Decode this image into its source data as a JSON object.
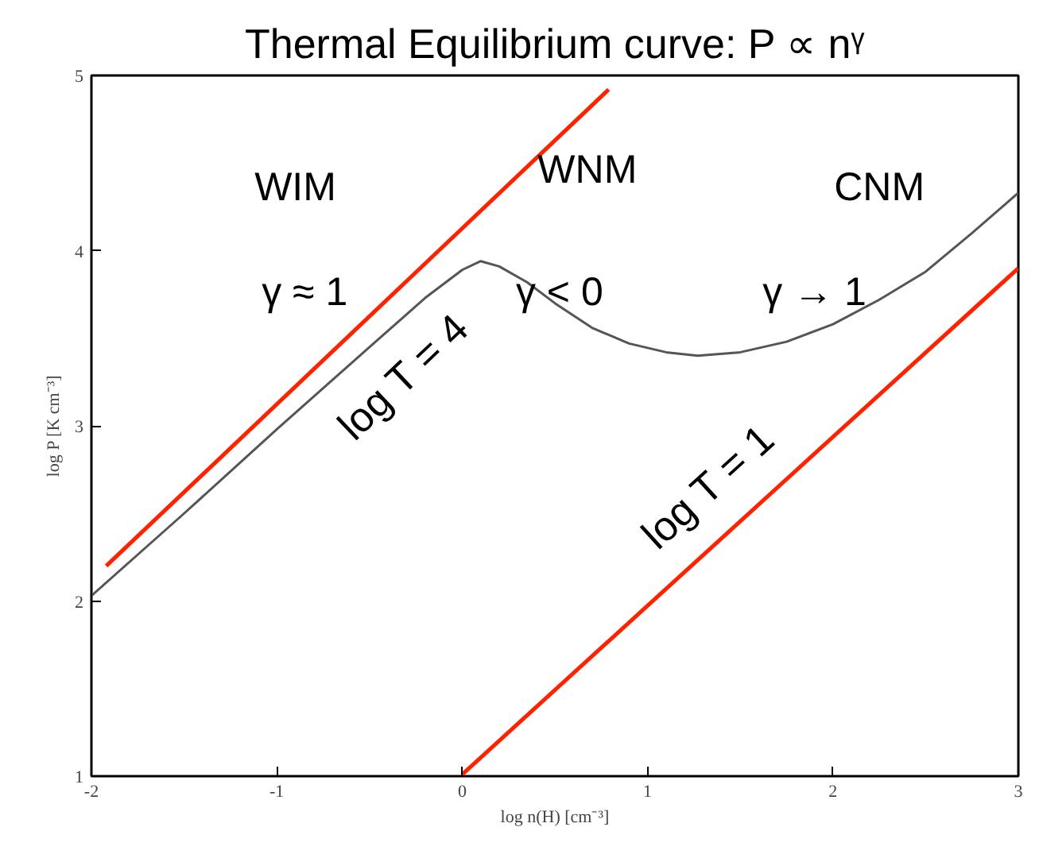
{
  "chart_data": {
    "type": "line",
    "title": "Thermal Equilibrium curve: P ∝ nᵞ",
    "xlabel": "log n(H) [cm⁻³]",
    "ylabel": "log P [K cm⁻³]",
    "xlim": [
      -2,
      3
    ],
    "ylim": [
      1,
      5
    ],
    "xticks": [
      -2,
      -1,
      0,
      1,
      2,
      3
    ],
    "yticks": [
      1,
      2,
      3,
      4,
      5
    ],
    "grid": false,
    "series": [
      {
        "color": "#ff2200",
        "x": [
          -1.92,
          0.79
        ],
        "values": [
          2.2,
          4.92
        ],
        "name": "log T = 4"
      },
      {
        "color": "#555555",
        "x": [
          -2,
          -1.5,
          -1,
          -0.5,
          -0.2,
          0,
          0.1,
          0.2,
          0.35,
          0.5,
          0.7,
          0.9,
          1.1,
          1.27,
          1.5,
          1.75,
          2,
          2.25,
          2.5,
          2.75,
          3
        ],
        "values": [
          2.03,
          2.5,
          2.98,
          3.45,
          3.73,
          3.89,
          3.94,
          3.91,
          3.82,
          3.7,
          3.56,
          3.47,
          3.42,
          3.4,
          3.42,
          3.48,
          3.58,
          3.72,
          3.88,
          4.1,
          4.33
        ]
      },
      {
        "color": "#ff2200",
        "x": [
          0,
          3
        ],
        "values": [
          1.01,
          3.9
        ],
        "name": "log T = 1"
      }
    ],
    "annotations": [
      "WIM",
      "WNM",
      "CNM",
      "γ ≈ 1",
      "γ < 0",
      "γ → 1"
    ]
  }
}
